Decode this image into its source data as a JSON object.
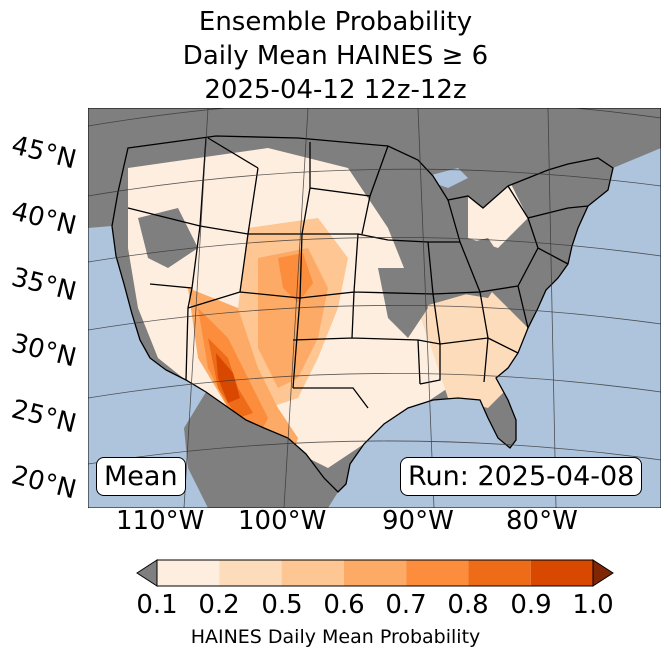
{
  "title": {
    "line1": "Ensemble Probability",
    "line2": "Daily Mean HAINES ≥ 6",
    "line3": "2025-04-12 12z-12z"
  },
  "lat_labels": [
    "45°N",
    "40°N",
    "35°N",
    "30°N",
    "25°N",
    "20°N"
  ],
  "lon_labels": [
    "110°W",
    "100°W",
    "90°W",
    "80°W"
  ],
  "left_box": "Mean",
  "right_box": "Run: 2025-04-08",
  "colorbar": {
    "ticks": [
      "0.1",
      "0.2",
      "0.5",
      "0.6",
      "0.7",
      "0.8",
      "0.9",
      "1.0"
    ],
    "label": "HAINES Daily Mean Probability",
    "colors": [
      "#feeee0",
      "#fddcbc",
      "#fdc692",
      "#fdaa66",
      "#fb8d3c",
      "#ee6b18",
      "#d94801"
    ],
    "under_color": "#7f7f7f",
    "over_color": "#7f2704"
  },
  "map_colors": {
    "ocean": "#aec4dc",
    "land_outside": "#7f7f7f",
    "no_data_land": "#7f7f7f"
  }
}
